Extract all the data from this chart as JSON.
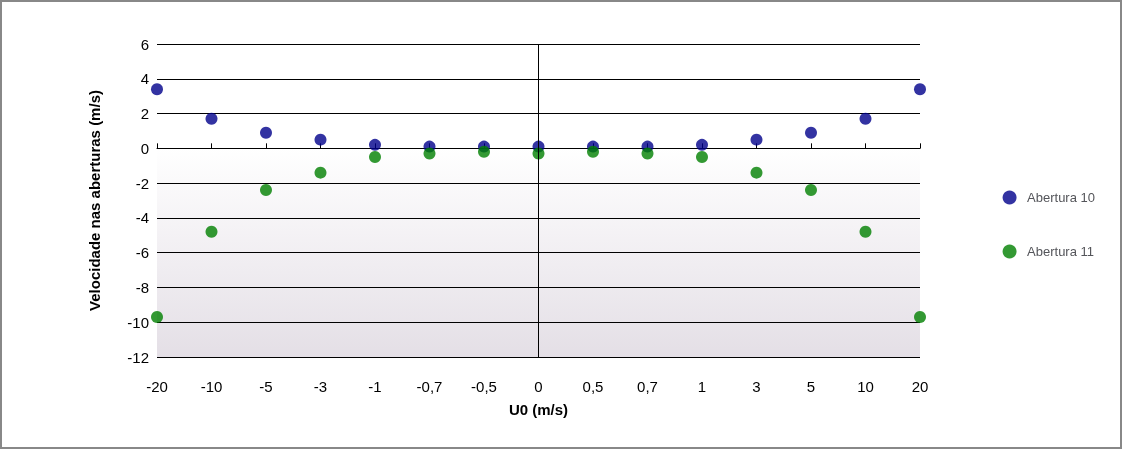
{
  "chart_data": {
    "type": "scatter",
    "xlabel": "U0 (m/s)",
    "ylabel": "Velocidade nas aberturas (m/s)",
    "categories": [
      "-20",
      "-10",
      "-5",
      "-3",
      "-1",
      "-0,7",
      "-0,5",
      "0",
      "0,5",
      "0,7",
      "1",
      "3",
      "5",
      "10",
      "20"
    ],
    "series": [
      {
        "name": "Abertura 10",
        "color": "#00008b",
        "values": [
          3.4,
          1.7,
          0.9,
          0.5,
          0.2,
          0.1,
          0.1,
          0.1,
          0.1,
          0.1,
          0.2,
          0.5,
          0.9,
          1.7,
          3.4
        ]
      },
      {
        "name": "Abertura 11",
        "color": "#008000",
        "values": [
          -9.7,
          -4.8,
          -2.4,
          -1.4,
          -0.5,
          -0.3,
          -0.2,
          -0.3,
          -0.2,
          -0.3,
          -0.5,
          -1.4,
          -2.4,
          -4.8,
          -9.7
        ]
      }
    ],
    "ylim": [
      -12,
      6
    ],
    "yticks": [
      -12,
      -10,
      -8,
      -6,
      -4,
      -2,
      0,
      2,
      4,
      6
    ],
    "ref_lines": [
      {
        "axis": "x",
        "value": "0",
        "color": "#000000"
      }
    ],
    "grid": "y",
    "legend": "right",
    "marker": "circle"
  }
}
